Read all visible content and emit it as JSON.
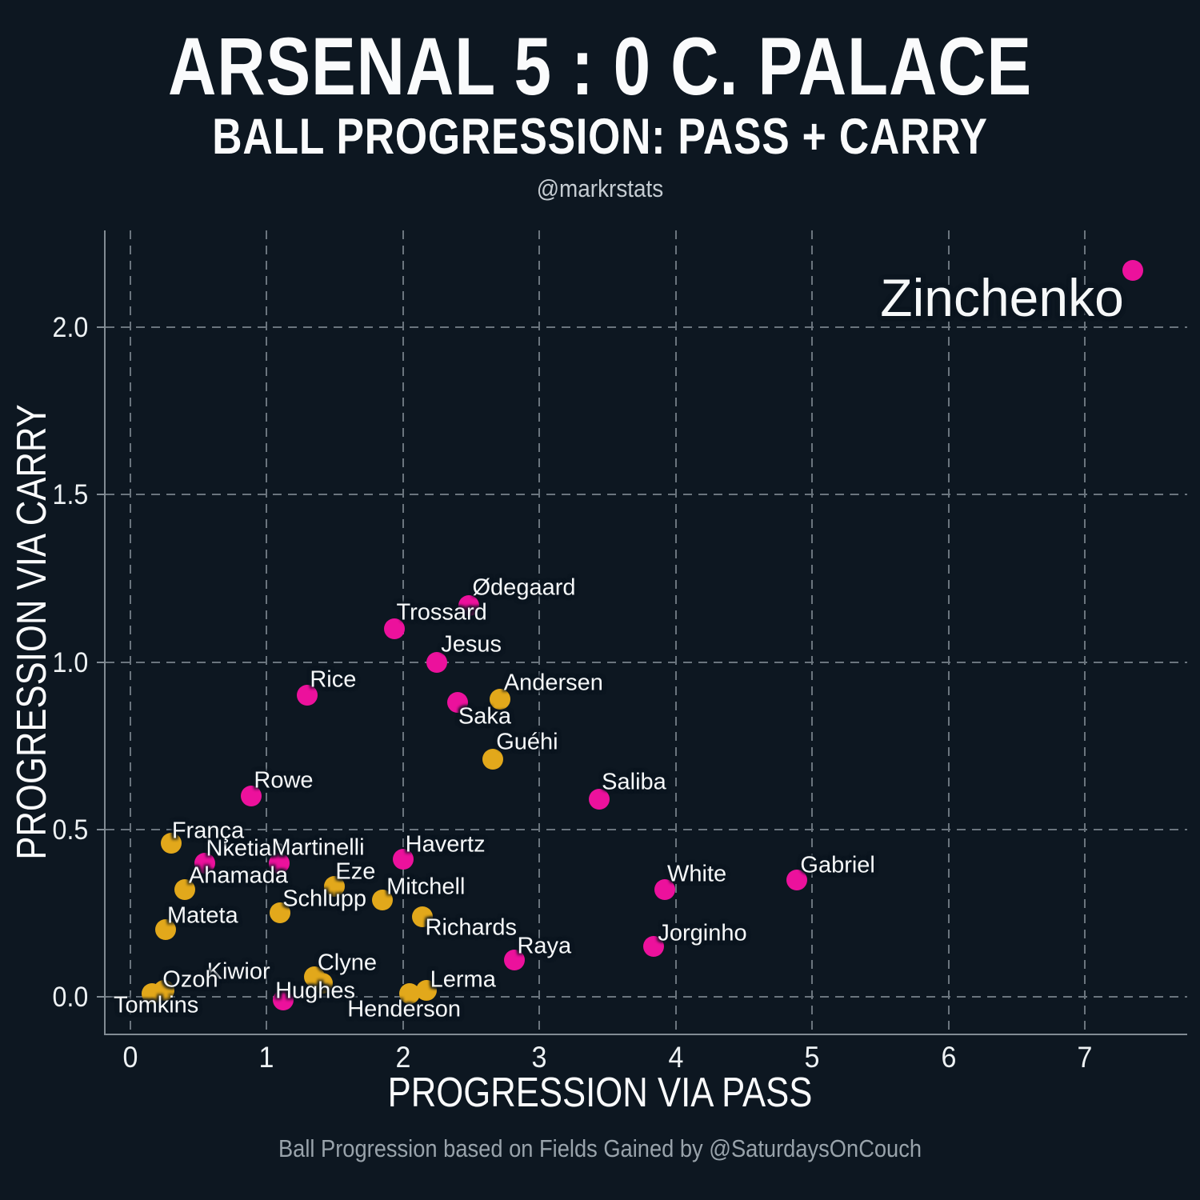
{
  "title": "ARSENAL 5 : 0 C. PALACE",
  "subtitle": "BALL PROGRESSION: PASS + CARRY",
  "credit": "@markrstats",
  "caption": "Ball Progression based on Fields Gained by @SaturdaysOnCouch",
  "colors": {
    "background": "#0d1721",
    "grid": "#6b757e",
    "axis": "#828c94",
    "tick_text": "#eef2f4",
    "label_text": "#f6f8f9",
    "title_text": "#fafbfc",
    "credit_text": "#c5ccd2",
    "muted_text": "#99a3ab",
    "arsenal": "#ec119c",
    "crystal_palace": "#e2a81b"
  },
  "chart_data": {
    "type": "scatter",
    "title": "ARSENAL 5 : 0 C. PALACE — BALL PROGRESSION: PASS + CARRY",
    "xlabel": "PROGRESSION VIA PASS",
    "ylabel": "PROGRESSION VIA CARRY",
    "xlim": [
      -0.18,
      7.75
    ],
    "ylim": [
      -0.11,
      2.29
    ],
    "grid": "dashed",
    "legend": "none",
    "xticks": [
      {
        "v": 0,
        "label": "0"
      },
      {
        "v": 1,
        "label": "1"
      },
      {
        "v": 2,
        "label": "2"
      },
      {
        "v": 3,
        "label": "3"
      },
      {
        "v": 4,
        "label": "4"
      },
      {
        "v": 5,
        "label": "5"
      },
      {
        "v": 6,
        "label": "6"
      },
      {
        "v": 7,
        "label": "7"
      }
    ],
    "yticks": [
      {
        "v": 0.0,
        "label": "0.0"
      },
      {
        "v": 0.5,
        "label": "0.5"
      },
      {
        "v": 1.0,
        "label": "1.0"
      },
      {
        "v": 1.5,
        "label": "1.5"
      },
      {
        "v": 2.0,
        "label": "2.0"
      }
    ],
    "series": [
      {
        "name": "Arsenal",
        "color": "#ec119c",
        "points": [
          {
            "label": "Zinchenko",
            "x": 7.35,
            "y": 2.17,
            "anchor": "right",
            "dx": -11,
            "dy": 34,
            "size": 66
          },
          {
            "label": "Ødegaard",
            "x": 2.48,
            "y": 1.17,
            "dx": 5,
            "dy": -22
          },
          {
            "label": "Trossard",
            "x": 1.94,
            "y": 1.1,
            "dx": 2,
            "dy": -20
          },
          {
            "label": "Jesus",
            "x": 2.25,
            "y": 1.0,
            "dx": 5,
            "dy": -22
          },
          {
            "label": "Saka",
            "x": 2.4,
            "y": 0.88,
            "dx": 1,
            "dy": 18
          },
          {
            "label": "Rice",
            "x": 1.3,
            "y": 0.9,
            "dx": 3,
            "dy": -19
          },
          {
            "label": "Rowe",
            "x": 0.89,
            "y": 0.6,
            "dx": 3,
            "dy": -19
          },
          {
            "label": "Nketiah",
            "x": 0.55,
            "y": 0.4,
            "dx": 1,
            "dy": -18
          },
          {
            "label": "Martinelli",
            "x": 1.09,
            "y": 0.4,
            "dx": -9,
            "dy": -19
          },
          {
            "label": "Havertz",
            "x": 2.0,
            "y": 0.41,
            "dx": 3,
            "dy": -18
          },
          {
            "label": "Saliba",
            "x": 3.44,
            "y": 0.59,
            "dx": 3,
            "dy": -21
          },
          {
            "label": "White",
            "x": 3.92,
            "y": 0.32,
            "dx": 3,
            "dy": -19
          },
          {
            "label": "Gabriel",
            "x": 4.89,
            "y": 0.35,
            "dx": 4,
            "dy": -18
          },
          {
            "label": "Jorginho",
            "x": 3.84,
            "y": 0.15,
            "dx": 5,
            "dy": -16
          },
          {
            "label": "Raya",
            "x": 2.82,
            "y": 0.11,
            "dx": 3,
            "dy": -17
          },
          {
            "label": "Kiwior",
            "x": 1.12,
            "y": -0.01,
            "anchor": "right",
            "dx": -16,
            "dy": -35
          }
        ]
      },
      {
        "name": "Crystal Palace",
        "color": "#e2a81b",
        "points": [
          {
            "label": "Andersen",
            "x": 2.71,
            "y": 0.89,
            "dx": 5,
            "dy": -20
          },
          {
            "label": "Guéhi",
            "x": 2.66,
            "y": 0.71,
            "dx": 4,
            "dy": -21
          },
          {
            "label": "França",
            "x": 0.3,
            "y": 0.46,
            "dx": 1,
            "dy": -15
          },
          {
            "label": "Ahamada",
            "x": 0.4,
            "y": 0.32,
            "dx": 5,
            "dy": -17
          },
          {
            "label": "Mateta",
            "x": 0.26,
            "y": 0.2,
            "dx": 2,
            "dy": -17
          },
          {
            "label": "Eze",
            "x": 1.5,
            "y": 0.33,
            "dx": 1,
            "dy": -18
          },
          {
            "label": "Schlupp",
            "x": 1.1,
            "y": 0.25,
            "dx": 3,
            "dy": -17
          },
          {
            "label": "Mitchell",
            "x": 1.85,
            "y": 0.29,
            "dx": 5,
            "dy": -16
          },
          {
            "label": "Richards",
            "x": 2.14,
            "y": 0.24,
            "dx": 4,
            "dy": 14
          },
          {
            "label": "Ozoh",
            "x": 0.25,
            "y": 0.02,
            "dx": -2,
            "dy": -13
          },
          {
            "label": "Tomkins",
            "x": 0.16,
            "y": 0.01,
            "dx": -48,
            "dy": 15
          },
          {
            "label": "Clyne",
            "x": 1.35,
            "y": 0.06,
            "dx": 4,
            "dy": -17
          },
          {
            "label": "Hughes",
            "x": 1.41,
            "y": 0.04,
            "dx": -59,
            "dy": 10
          },
          {
            "label": "Lerma",
            "x": 2.17,
            "y": 0.02,
            "dx": 5,
            "dy": -13
          },
          {
            "label": "Henderson",
            "x": 2.05,
            "y": 0.01,
            "dx": -78,
            "dy": 20
          }
        ]
      }
    ]
  }
}
